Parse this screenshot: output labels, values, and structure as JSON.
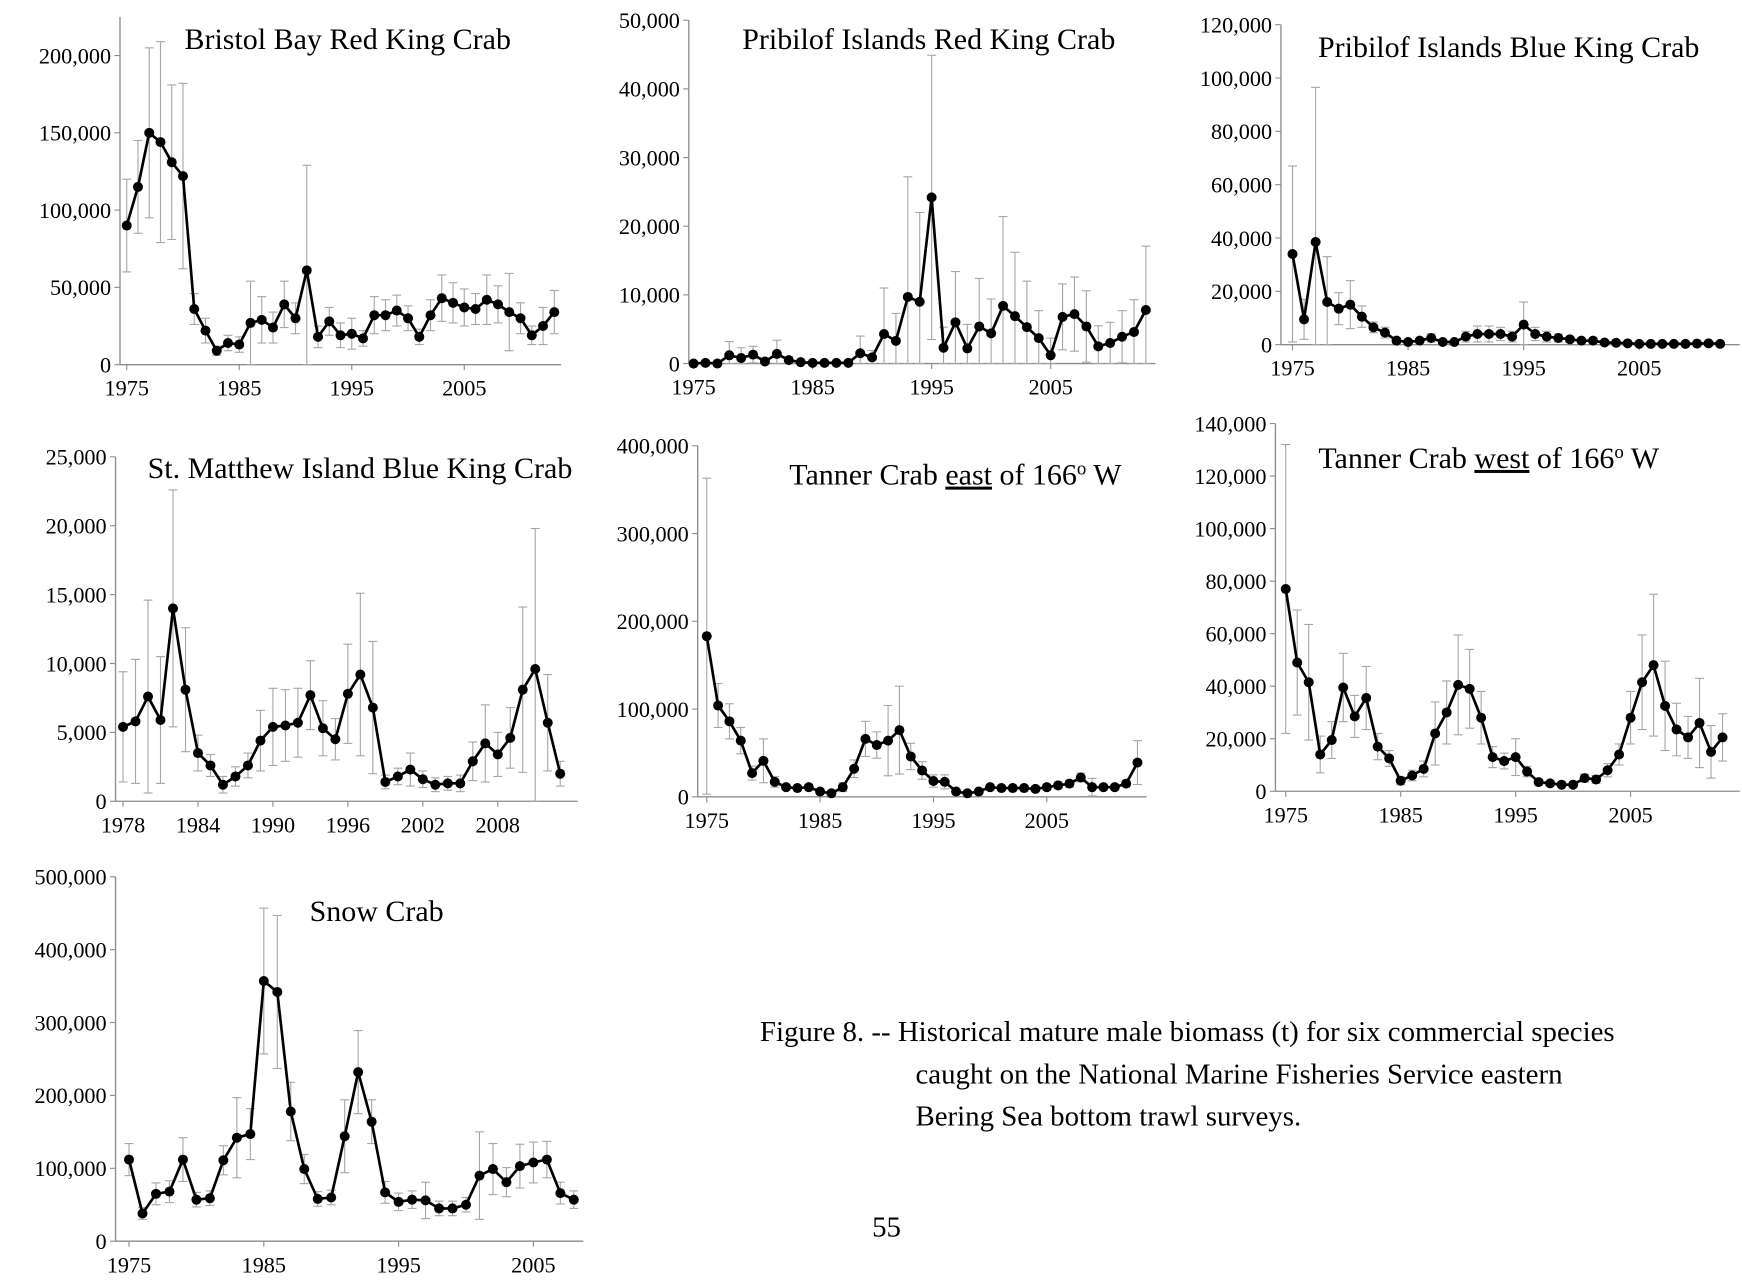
{
  "chart_data": [
    {
      "type": "line",
      "title": "Bristol Bay Red King Crab",
      "color": "#000000",
      "error_color": "#a6a6a6",
      "x": [
        1975,
        1976,
        1977,
        1978,
        1979,
        1980,
        1981,
        1982,
        1983,
        1984,
        1985,
        1986,
        1987,
        1988,
        1989,
        1990,
        1991,
        1992,
        1993,
        1994,
        1995,
        1996,
        1997,
        1998,
        1999,
        2000,
        2001,
        2002,
        2003,
        2004,
        2005,
        2006,
        2007,
        2008,
        2009,
        2010,
        2011,
        2012,
        2013
      ],
      "values": [
        90000,
        115000,
        150000,
        144000,
        131000,
        122000,
        36000,
        22000,
        9000,
        14000,
        13000,
        27000,
        29000,
        24000,
        39000,
        30000,
        61000,
        18000,
        28000,
        19000,
        20000,
        17000,
        32000,
        32000,
        35000,
        30000,
        18000,
        32000,
        43000,
        40000,
        37000,
        36000,
        42000,
        39000,
        34000,
        30000,
        19000,
        25000,
        34000
      ],
      "errors": [
        30000,
        30000,
        55000,
        65000,
        50000,
        60000,
        10000,
        8000,
        3000,
        5000,
        5000,
        27000,
        15000,
        10000,
        15000,
        10000,
        68000,
        7000,
        9000,
        8000,
        10000,
        5000,
        12000,
        10000,
        10000,
        8000,
        5000,
        10000,
        15000,
        13000,
        12000,
        10000,
        16000,
        12000,
        25000,
        10000,
        6000,
        12000,
        14000
      ],
      "xlim": [
        1974.4,
        2013.6
      ],
      "ylim": [
        0,
        225000
      ],
      "xticks": [
        1975,
        1985,
        1995,
        2005
      ],
      "yticks": [
        0,
        {
          "value": 50000,
          "label": "50,000"
        },
        {
          "value": 100000,
          "label": "100,000"
        },
        {
          "value": 150000,
          "label": "150,000"
        },
        {
          "value": 200000,
          "label": "200,000"
        }
      ]
    },
    {
      "type": "line",
      "title": "Pribilof Islands Red King Crab",
      "color": "#000000",
      "error_color": "#a6a6a6",
      "x": [
        1975,
        1976,
        1977,
        1978,
        1979,
        1980,
        1981,
        1982,
        1983,
        1984,
        1985,
        1986,
        1987,
        1988,
        1989,
        1990,
        1991,
        1992,
        1993,
        1994,
        1995,
        1996,
        1997,
        1998,
        1999,
        2000,
        2001,
        2002,
        2003,
        2004,
        2005,
        2006,
        2007,
        2008,
        2009,
        2010,
        2011,
        2012,
        2013
      ],
      "values": [
        0,
        100,
        0,
        1200,
        800,
        1300,
        300,
        1400,
        500,
        200,
        100,
        100,
        100,
        100,
        1500,
        900,
        4300,
        3300,
        9700,
        9000,
        24200,
        2300,
        6000,
        2200,
        5400,
        4400,
        8400,
        6900,
        5300,
        3700,
        1200,
        6800,
        7200,
        5400,
        2500,
        3000,
        3900,
        4600,
        7800
      ],
      "errors": [
        0,
        100,
        0,
        2000,
        1500,
        1200,
        400,
        2000,
        500,
        200,
        100,
        100,
        100,
        100,
        2500,
        1000,
        6700,
        4000,
        17500,
        13000,
        20700,
        3000,
        7400,
        3500,
        7000,
        5000,
        13000,
        9300,
        6700,
        4000,
        2500,
        4800,
        5400,
        5200,
        3000,
        3000,
        3800,
        4700,
        9300
      ],
      "xlim": [
        1974.6,
        2013.8
      ],
      "ylim": [
        0,
        50000
      ],
      "xticks": [
        1975,
        1985,
        1995,
        2005
      ],
      "yticks": [
        0,
        {
          "value": 10000,
          "label": "10,000"
        },
        {
          "value": 20000,
          "label": "20,000"
        },
        {
          "value": 30000,
          "label": "30,000"
        },
        {
          "value": 40000,
          "label": "40,000"
        },
        {
          "value": 50000,
          "label": "50,000"
        }
      ]
    },
    {
      "type": "line",
      "title": "Pribilof Islands Blue King Crab",
      "color": "#000000",
      "error_color": "#a6a6a6",
      "x": [
        1975,
        1976,
        1977,
        1978,
        1979,
        1980,
        1981,
        1982,
        1983,
        1984,
        1985,
        1986,
        1987,
        1988,
        1989,
        1990,
        1991,
        1992,
        1993,
        1994,
        1995,
        1996,
        1997,
        1998,
        1999,
        2000,
        2001,
        2002,
        2003,
        2004,
        2005,
        2006,
        2007,
        2008,
        2009,
        2010,
        2011,
        2012
      ],
      "values": [
        34000,
        9500,
        38500,
        16000,
        13500,
        15000,
        10500,
        6500,
        4500,
        1500,
        1000,
        1500,
        2500,
        1000,
        1000,
        3000,
        4000,
        4000,
        4000,
        3000,
        7500,
        4000,
        3000,
        2500,
        2000,
        1500,
        1500,
        800,
        700,
        500,
        300,
        300,
        300,
        300,
        300,
        400,
        500,
        300
      ],
      "errors": [
        33000,
        7500,
        58000,
        17000,
        6000,
        9000,
        4000,
        2000,
        2000,
        1000,
        500,
        800,
        1500,
        500,
        500,
        2000,
        3000,
        3000,
        2500,
        2000,
        8500,
        2500,
        2000,
        1500,
        1000,
        800,
        800,
        500,
        400,
        300,
        200,
        200,
        200,
        200,
        200,
        200,
        300,
        200
      ],
      "xlim": [
        1974,
        2013.7
      ],
      "ylim": [
        0,
        120000
      ],
      "xticks": [
        1975,
        1985,
        1995,
        2005
      ],
      "yticks": [
        0,
        {
          "value": 20000,
          "label": "20,000"
        },
        {
          "value": 40000,
          "label": "40,000"
        },
        {
          "value": 60000,
          "label": "60,000"
        },
        {
          "value": 80000,
          "label": "80,000"
        },
        {
          "value": 100000,
          "label": "100,000"
        },
        {
          "value": 120000,
          "label": "120,000"
        }
      ]
    },
    {
      "type": "line",
      "title": "St. Matthew Island Blue King Crab",
      "color": "#000000",
      "error_color": "#a6a6a6",
      "x": [
        1978,
        1979,
        1980,
        1981,
        1982,
        1983,
        1984,
        1985,
        1986,
        1987,
        1988,
        1989,
        1990,
        1991,
        1992,
        1993,
        1994,
        1995,
        1996,
        1997,
        1998,
        1999,
        2000,
        2001,
        2002,
        2003,
        2004,
        2005,
        2006,
        2007,
        2008,
        2009,
        2010,
        2011,
        2012,
        2013
      ],
      "values": [
        5400,
        5800,
        7600,
        5900,
        14000,
        8100,
        3500,
        2600,
        1200,
        1800,
        2600,
        4400,
        5400,
        5500,
        5700,
        7700,
        5300,
        4500,
        7800,
        9200,
        6800,
        1400,
        1800,
        2300,
        1600,
        1200,
        1300,
        1300,
        2900,
        4200,
        3400,
        4600,
        8100,
        9600,
        5700,
        2000
      ],
      "errors": [
        4000,
        4500,
        7000,
        4600,
        8600,
        4500,
        1300,
        800,
        600,
        700,
        900,
        2200,
        2800,
        2600,
        2500,
        2500,
        2000,
        1500,
        3600,
        5900,
        4800,
        500,
        600,
        1200,
        600,
        500,
        500,
        600,
        1400,
        2800,
        1600,
        2200,
        6000,
        10200,
        3500,
        900
      ],
      "xlim": [
        1977.4,
        2014.4
      ],
      "ylim": [
        0,
        25000
      ],
      "xticks": [
        1978,
        1984,
        1990,
        1996,
        2002,
        2008
      ],
      "yticks": [
        0,
        {
          "value": 5000,
          "label": "5,000"
        },
        {
          "value": 10000,
          "label": "10,000"
        },
        {
          "value": 15000,
          "label": "15,000"
        },
        {
          "value": 20000,
          "label": "20,000"
        },
        {
          "value": 25000,
          "label": "25,000"
        }
      ]
    },
    {
      "type": "line",
      "title": [
        "Tanner Crab ",
        "east",
        " of 166",
        "o",
        " W"
      ],
      "title_underline": 1,
      "title_superscript": 3,
      "color": "#000000",
      "error_color": "#a6a6a6",
      "x": [
        1975,
        1976,
        1977,
        1978,
        1979,
        1980,
        1981,
        1982,
        1983,
        1984,
        1985,
        1986,
        1987,
        1988,
        1989,
        1990,
        1991,
        1992,
        1993,
        1994,
        1995,
        1996,
        1997,
        1998,
        1999,
        2000,
        2001,
        2002,
        2003,
        2004,
        2005,
        2006,
        2007,
        2008,
        2009,
        2010,
        2011,
        2012,
        2013
      ],
      "values": [
        183000,
        104000,
        86000,
        64000,
        27000,
        41000,
        17000,
        11000,
        10000,
        11000,
        6000,
        4000,
        11000,
        32000,
        66000,
        59000,
        64000,
        76000,
        46000,
        30000,
        18000,
        17000,
        6000,
        4000,
        6000,
        11000,
        10000,
        10000,
        10000,
        9000,
        11000,
        13000,
        15000,
        22000,
        11000,
        11000,
        11000,
        15000,
        39000
      ],
      "errors": [
        180000,
        25000,
        20000,
        15000,
        8000,
        25000,
        6000,
        3000,
        3000,
        3000,
        2000,
        1500,
        5000,
        10000,
        20000,
        15000,
        40000,
        50000,
        15000,
        10000,
        7000,
        8000,
        2000,
        1500,
        2000,
        3000,
        3000,
        3000,
        3000,
        3000,
        3000,
        4000,
        4000,
        5000,
        10000,
        3000,
        3000,
        3000,
        25000
      ],
      "xlim": [
        1974.2,
        2013.8
      ],
      "ylim": [
        0,
        400000
      ],
      "xticks": [
        1975,
        1985,
        1995,
        2005
      ],
      "yticks": [
        0,
        {
          "value": 100000,
          "label": "100,000"
        },
        {
          "value": 200000,
          "label": "200,000"
        },
        {
          "value": 300000,
          "label": "300,000"
        },
        {
          "value": 400000,
          "label": "400,000"
        }
      ]
    },
    {
      "type": "line",
      "title": [
        "Tanner Crab ",
        "west",
        " of 166",
        "o",
        " W"
      ],
      "title_underline": 1,
      "title_superscript": 3,
      "color": "#000000",
      "error_color": "#a6a6a6",
      "x": [
        1975,
        1976,
        1977,
        1978,
        1979,
        1980,
        1981,
        1982,
        1983,
        1984,
        1985,
        1986,
        1987,
        1988,
        1989,
        1990,
        1991,
        1992,
        1993,
        1994,
        1995,
        1996,
        1997,
        1998,
        1999,
        2000,
        2001,
        2002,
        2003,
        2004,
        2005,
        2006,
        2007,
        2008,
        2009,
        2010,
        2011,
        2012,
        2013
      ],
      "values": [
        77000,
        49000,
        41500,
        14000,
        19500,
        39500,
        28500,
        35500,
        17000,
        12500,
        4000,
        6000,
        8500,
        22000,
        30000,
        40500,
        39000,
        28000,
        13000,
        11500,
        13000,
        7500,
        3500,
        3000,
        2500,
        2500,
        5000,
        4500,
        8000,
        14000,
        28000,
        41500,
        48000,
        32500,
        23500,
        20500,
        26000,
        15000,
        20500
      ],
      "errors": [
        55000,
        20000,
        22000,
        7000,
        7000,
        13000,
        8000,
        12000,
        5000,
        3000,
        1500,
        2000,
        3000,
        12000,
        12000,
        19000,
        15000,
        10000,
        4000,
        3000,
        7000,
        2000,
        1000,
        1000,
        800,
        800,
        1500,
        1500,
        2500,
        4000,
        10000,
        18000,
        27000,
        17000,
        10000,
        8000,
        17000,
        10000,
        9000
      ],
      "xlim": [
        1974.1,
        2014.5
      ],
      "ylim": [
        0,
        140000
      ],
      "xticks": [
        1975,
        1985,
        1995,
        2005
      ],
      "yticks": [
        0,
        {
          "value": 20000,
          "label": "20,000"
        },
        {
          "value": 40000,
          "label": "40,000"
        },
        {
          "value": 60000,
          "label": "60,000"
        },
        {
          "value": 80000,
          "label": "80,000"
        },
        {
          "value": 100000,
          "label": "100,000"
        },
        {
          "value": 120000,
          "label": "120,000"
        },
        {
          "value": 140000,
          "label": "140,000"
        }
      ]
    },
    {
      "type": "line",
      "title": "Snow Crab",
      "color": "#000000",
      "error_color": "#a6a6a6",
      "x": [
        1975,
        1976,
        1977,
        1978,
        1979,
        1980,
        1981,
        1982,
        1983,
        1984,
        1985,
        1986,
        1987,
        1988,
        1989,
        1990,
        1991,
        1992,
        1993,
        1994,
        1995,
        1996,
        1997,
        1998,
        1999,
        2000,
        2001,
        2002,
        2003,
        2004,
        2005,
        2006,
        2007,
        2008
      ],
      "values": [
        112000,
        38000,
        65000,
        68000,
        112000,
        57000,
        59000,
        111000,
        142000,
        147000,
        357000,
        342000,
        178000,
        99000,
        58000,
        60000,
        144000,
        232000,
        164000,
        67000,
        54000,
        57000,
        56000,
        45000,
        45000,
        50000,
        90000,
        99000,
        81000,
        103000,
        108000,
        112000,
        66000,
        57000
      ],
      "errors": [
        22000,
        8000,
        15000,
        15000,
        30000,
        10000,
        10000,
        20000,
        55000,
        35000,
        100000,
        105000,
        40000,
        20000,
        10000,
        10000,
        50000,
        57000,
        30000,
        15000,
        12000,
        12000,
        25000,
        10000,
        10000,
        10000,
        60000,
        35000,
        20000,
        30000,
        28000,
        25000,
        15000,
        12000
      ],
      "xlim": [
        1974,
        2008.7
      ],
      "ylim": [
        0,
        500000
      ],
      "xticks": [
        1975,
        1985,
        1995,
        2005
      ],
      "yticks": [
        0,
        {
          "value": 100000,
          "label": "100,000"
        },
        {
          "value": 200000,
          "label": "200,000"
        },
        {
          "value": 300000,
          "label": "300,000"
        },
        {
          "value": 400000,
          "label": "400,000"
        },
        {
          "value": 500000,
          "label": "500,000"
        }
      ]
    }
  ],
  "caption": [
    "Figure 8. -- Historical mature male biomass (t) for six commercial species",
    "caught on the National Marine Fisheries Service eastern",
    "Bering Sea bottom trawl surveys."
  ],
  "page_number": "55"
}
